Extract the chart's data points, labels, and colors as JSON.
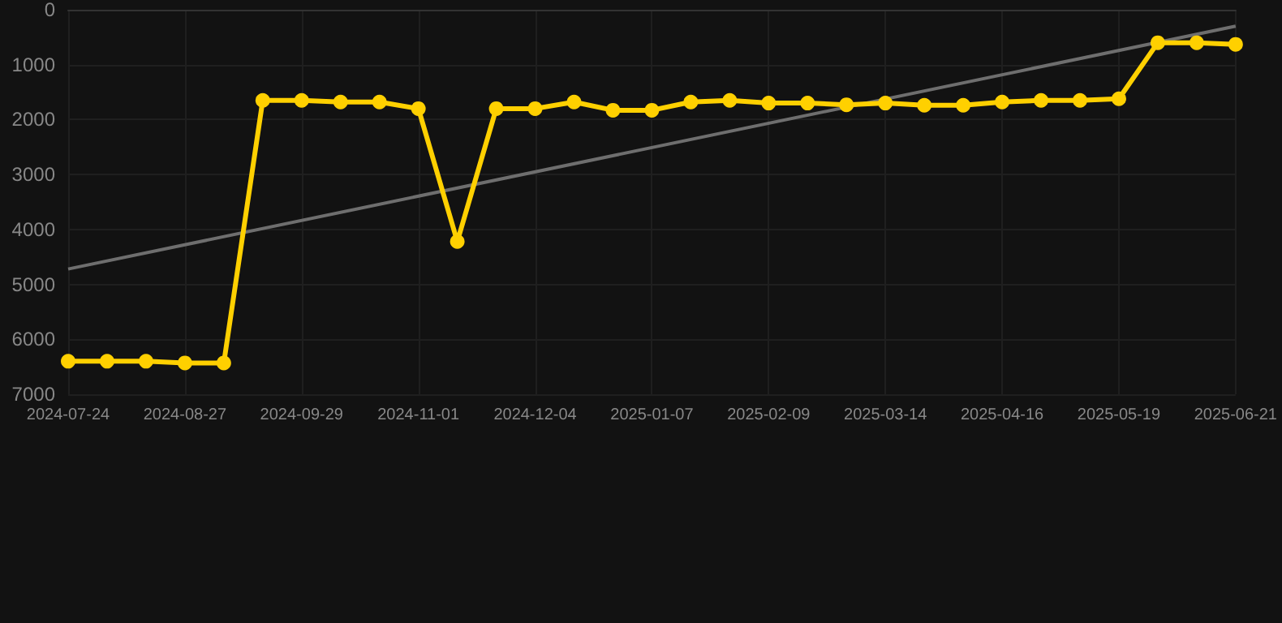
{
  "chart_data": {
    "type": "line",
    "categories": [
      "2024-07-24",
      null,
      null,
      "2024-08-27",
      null,
      null,
      "2024-09-29",
      null,
      null,
      "2024-11-01",
      null,
      null,
      "2024-12-04",
      null,
      null,
      "2025-01-07",
      null,
      null,
      "2025-02-09",
      null,
      null,
      "2025-03-14",
      null,
      null,
      "2025-04-16",
      null,
      null,
      "2025-05-19",
      null,
      null,
      "2025-06-21"
    ],
    "series": [
      {
        "color": "#ffd000",
        "marker": "circle",
        "values": [
          6400,
          6400,
          6400,
          6430,
          6430,
          1650,
          1650,
          1680,
          1680,
          1800,
          4220,
          1800,
          1800,
          1680,
          1830,
          1830,
          1680,
          1650,
          1700,
          1700,
          1730,
          1700,
          1740,
          1740,
          1680,
          1650,
          1650,
          1620,
          600,
          600,
          630
        ]
      },
      {
        "type": "line",
        "color": "#6e6e6e",
        "marker": "none",
        "values": [
          4720,
          null,
          null,
          null,
          null,
          null,
          null,
          null,
          null,
          null,
          null,
          null,
          null,
          null,
          null,
          null,
          null,
          null,
          null,
          null,
          null,
          null,
          null,
          null,
          null,
          null,
          null,
          null,
          null,
          null,
          300
        ]
      }
    ],
    "ylim": [
      7000,
      0
    ],
    "yticks": [
      0,
      1000,
      2000,
      3000,
      4000,
      5000,
      6000,
      7000
    ],
    "grid": true
  }
}
